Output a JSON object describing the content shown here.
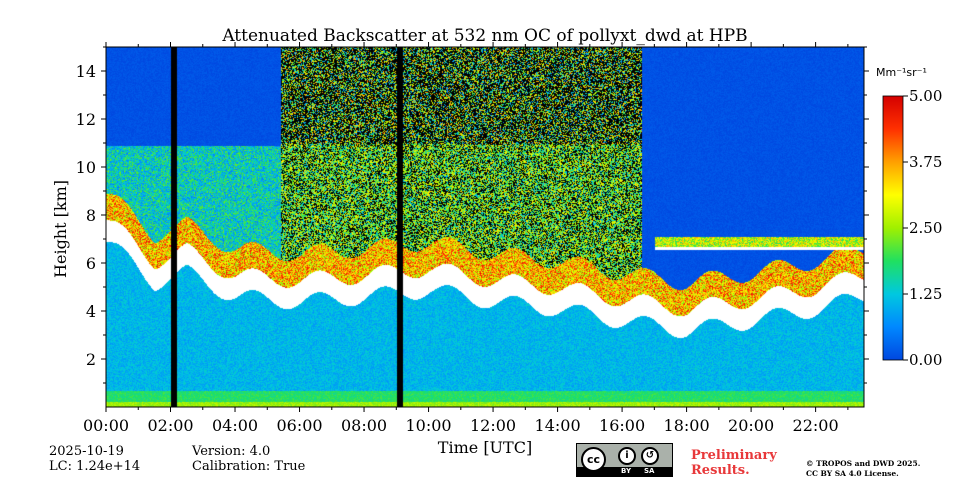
{
  "chart_data": {
    "type": "heatmap",
    "title": "Attenuated Backscatter at 532 nm OC of pollyxt_dwd at HPB",
    "xlabel": "Time [UTC]",
    "ylabel": "Height [km]",
    "xlim": [
      0,
      23.5
    ],
    "ylim": [
      0,
      15
    ],
    "xticks": [
      "00:00",
      "02:00",
      "04:00",
      "06:00",
      "08:00",
      "10:00",
      "12:00",
      "14:00",
      "16:00",
      "18:00",
      "20:00",
      "22:00"
    ],
    "yticks": [
      "2",
      "4",
      "6",
      "8",
      "10",
      "12",
      "14"
    ],
    "colorbar": {
      "unit": "Mm⁻¹sr⁻¹",
      "range": [
        0,
        5
      ],
      "ticks": [
        "0.00",
        "1.25",
        "2.50",
        "3.75",
        "5.00"
      ],
      "colormap": [
        "#0047e0",
        "#0088ff",
        "#00c8e0",
        "#20e060",
        "#a0f000",
        "#ffff00",
        "#ffa000",
        "#ff3000",
        "#d40000"
      ]
    },
    "features": {
      "no_data_gaps_utc": [
        [
          2.0,
          2.2
        ],
        [
          9.0,
          9.2
        ]
      ],
      "cloud_base_km": [
        {
          "t": 0.0,
          "h": 7.5
        },
        {
          "t": 1.5,
          "h": 5.8
        },
        {
          "t": 2.5,
          "h": 6.2
        },
        {
          "t": 4.0,
          "h": 5.2
        },
        {
          "t": 6.0,
          "h": 5.0
        },
        {
          "t": 8.0,
          "h": 5.2
        },
        {
          "t": 10.0,
          "h": 5.5
        },
        {
          "t": 12.0,
          "h": 5.0
        },
        {
          "t": 14.0,
          "h": 4.7
        },
        {
          "t": 16.0,
          "h": 4.2
        },
        {
          "t": 18.0,
          "h": 3.8
        },
        {
          "t": 20.0,
          "h": 4.2
        },
        {
          "t": 22.0,
          "h": 4.7
        },
        {
          "t": 23.5,
          "h": 5.2
        }
      ],
      "upper_cloud_layer": {
        "t_start": 17.0,
        "t_end": 23.5,
        "h": 6.7
      }
    }
  },
  "footer": {
    "date": "2025-10-19",
    "lc": "LC: 1.24e+14",
    "version": "Version: 4.0",
    "calibration": "Calibration: True",
    "preliminary_line1": "Preliminary",
    "preliminary_line2": "Results.",
    "copyright_line1": "© TROPOS and DWD 2025.",
    "copyright_line2": "CC BY SA 4.0 License.",
    "license_badge": {
      "cc": "cc",
      "by": "BY",
      "sa": "SA"
    }
  }
}
